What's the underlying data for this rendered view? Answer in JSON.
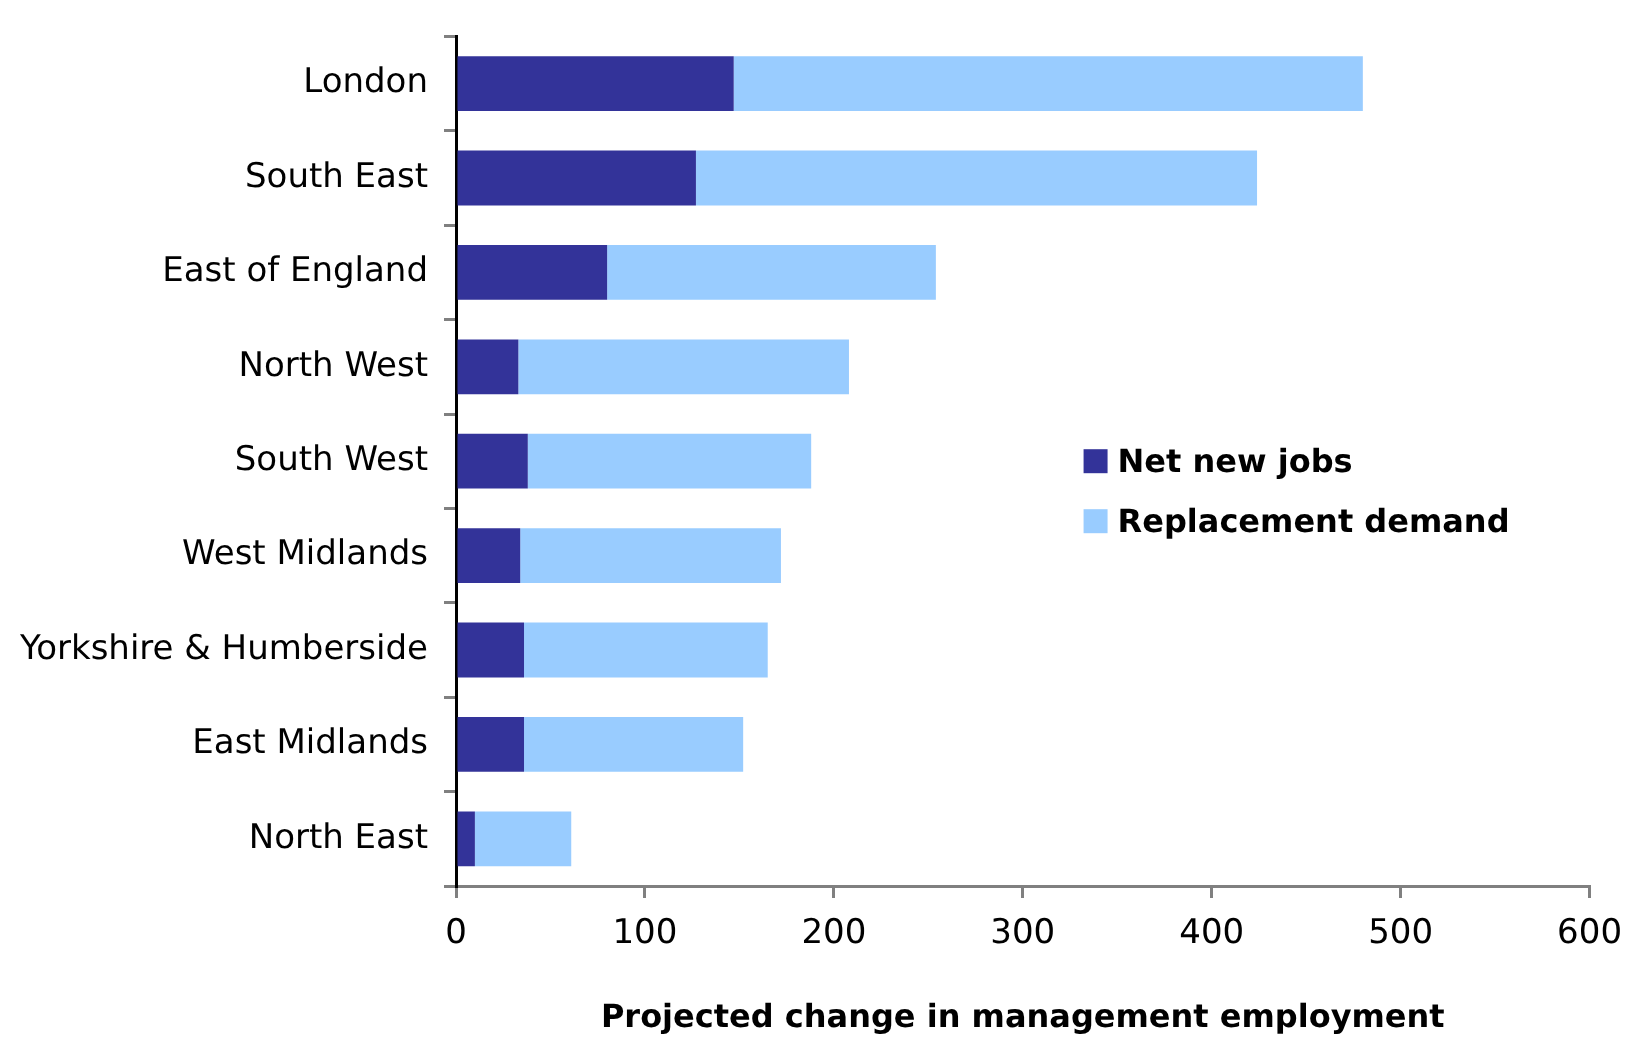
{
  "chart_data": {
    "type": "bar",
    "orientation": "horizontal",
    "stacked": true,
    "categories": [
      "London",
      "South East",
      "East of England",
      "North West",
      "South West",
      "West Midlands",
      "Yorkshire & Humberside",
      "East Midlands",
      "North East"
    ],
    "series": [
      {
        "name": "Net new jobs",
        "color": "#333399",
        "values": [
          147,
          127,
          80,
          33,
          38,
          34,
          36,
          36,
          10
        ]
      },
      {
        "name": "Replacement demand",
        "color": "#99ccff",
        "values": [
          333,
          297,
          174,
          175,
          150,
          138,
          129,
          116,
          51
        ]
      }
    ],
    "xlim": [
      0,
      600
    ],
    "xticks": [
      0,
      100,
      200,
      300,
      400,
      500,
      600
    ],
    "xlabel": "Projected change in management employment",
    "legend": "right"
  }
}
